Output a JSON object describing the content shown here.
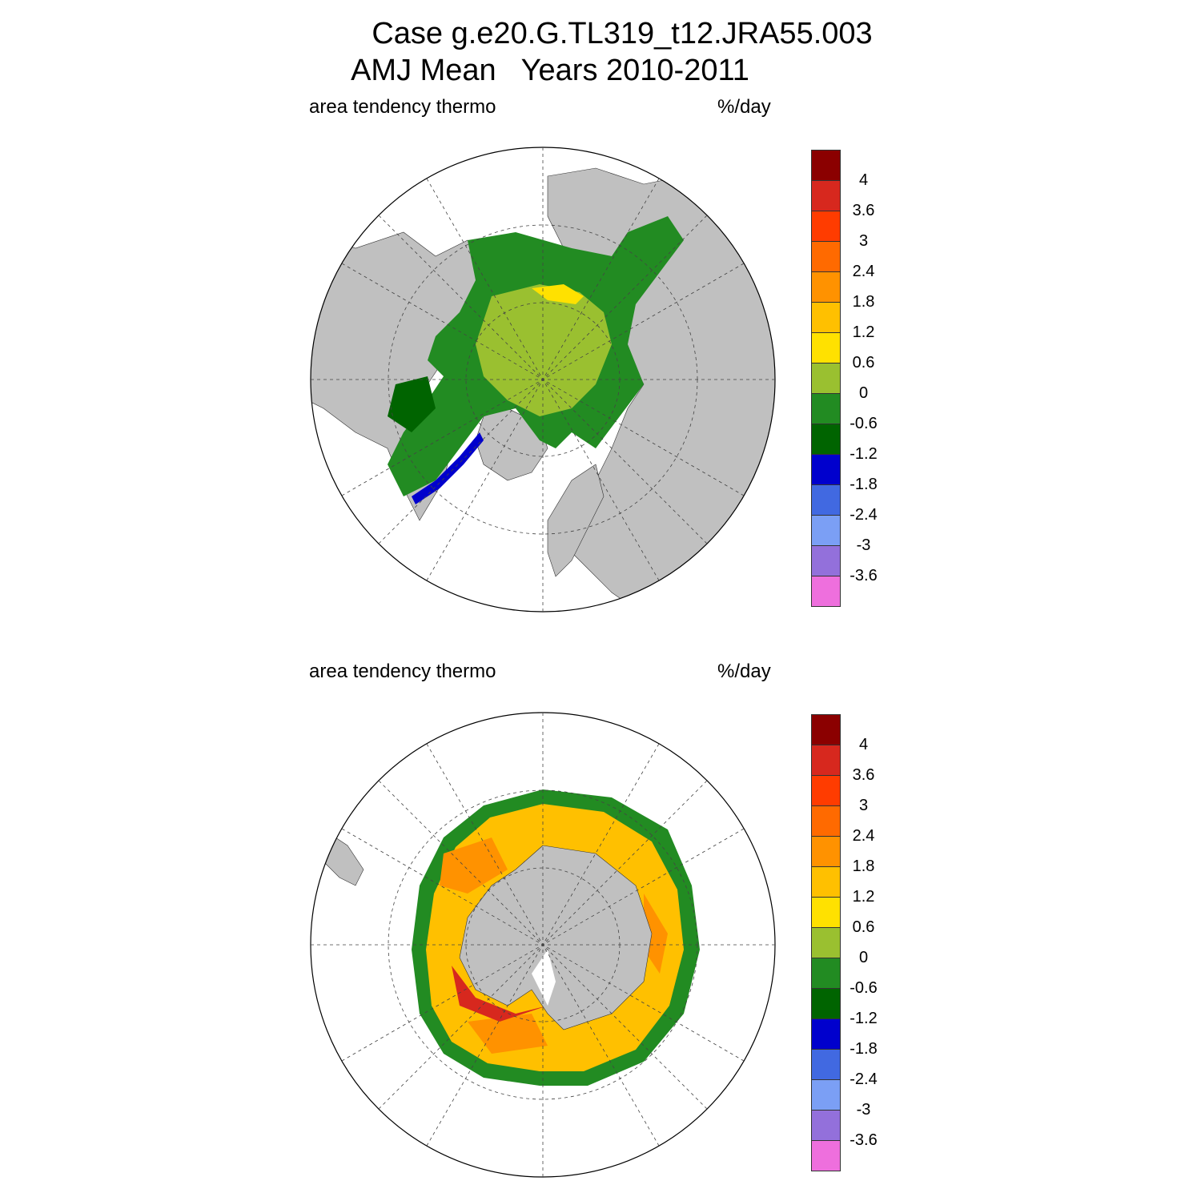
{
  "title": {
    "line1": "Case g.e20.G.TL319_t12.JRA55.003",
    "line2": "AMJ Mean   Years 2010-2011"
  },
  "panels": [
    {
      "hemisphere": "north",
      "left_label": "area tendency thermo",
      "right_label": "%/day"
    },
    {
      "hemisphere": "south",
      "left_label": "area tendency thermo",
      "right_label": "%/day"
    }
  ],
  "colorbar": {
    "colors": [
      "#8b0000",
      "#d7281e",
      "#ff3c00",
      "#ff6a00",
      "#ff9200",
      "#ffc000",
      "#ffe100",
      "#9ac030",
      "#228b22",
      "#006400",
      "#0000cd",
      "#4169e1",
      "#7b9ff5",
      "#9370db",
      "#ee6fdd"
    ],
    "labels": [
      "4",
      "3.6",
      "3",
      "2.4",
      "1.8",
      "1.2",
      "0.6",
      "0",
      "-0.6",
      "-1.2",
      "-1.8",
      "-2.4",
      "-3",
      "-3.6"
    ]
  },
  "map_colors": {
    "land": "#c0c0c0",
    "ocean": "#ffffff",
    "grid": "#444444"
  }
}
